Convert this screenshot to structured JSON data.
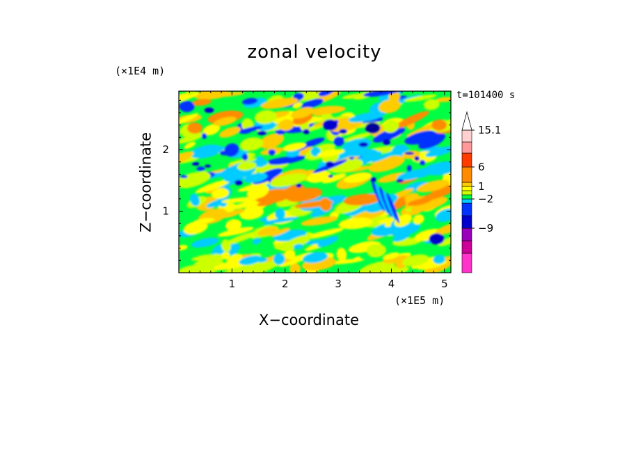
{
  "chart_data": {
    "type": "heatmap",
    "title": "zonal velocity",
    "xlabel": "X−coordinate",
    "ylabel": "Z−coordinate",
    "x_units": "(×1E5 m)",
    "y_units": "(×1E4 m)",
    "timestamp": "t=101400 s",
    "xlim": [
      0,
      5.12
    ],
    "ylim": [
      0,
      2.95
    ],
    "x_ticks": [
      "1",
      "2",
      "3",
      "4",
      "5"
    ],
    "y_ticks": [
      "1",
      "2"
    ],
    "colorbar": {
      "labels": [
        "15.1",
        "6",
        "1",
        "−2",
        "−9"
      ],
      "colors": [
        "#ff33cc",
        "#cc0099",
        "#9900bb",
        "#0000cc",
        "#0033ff",
        "#00ccff",
        "#00ff44",
        "#ccff00",
        "#ffff00",
        "#ffcc00",
        "#ff8c00",
        "#ff3b00",
        "#ff9999",
        "#ffd0d0"
      ]
    },
    "regions": [
      {
        "x": 3.65,
        "z": 2.35,
        "level": "−9 to −2",
        "color": "#000099"
      },
      {
        "x": 2.85,
        "z": 2.4,
        "level": "−9 to −2",
        "color": "#0000cc"
      },
      {
        "x": 0.15,
        "z": 2.7,
        "level": "−2",
        "color": "#0033ff"
      },
      {
        "x": 0.3,
        "z": 2.35,
        "level": "6",
        "color": "#ff8c00"
      },
      {
        "x": 4.9,
        "z": 2.4,
        "level": "6",
        "color": "#ff8c00"
      },
      {
        "x": 4.85,
        "z": 0.55,
        "level": "−2",
        "color": "#0000cc"
      }
    ]
  }
}
